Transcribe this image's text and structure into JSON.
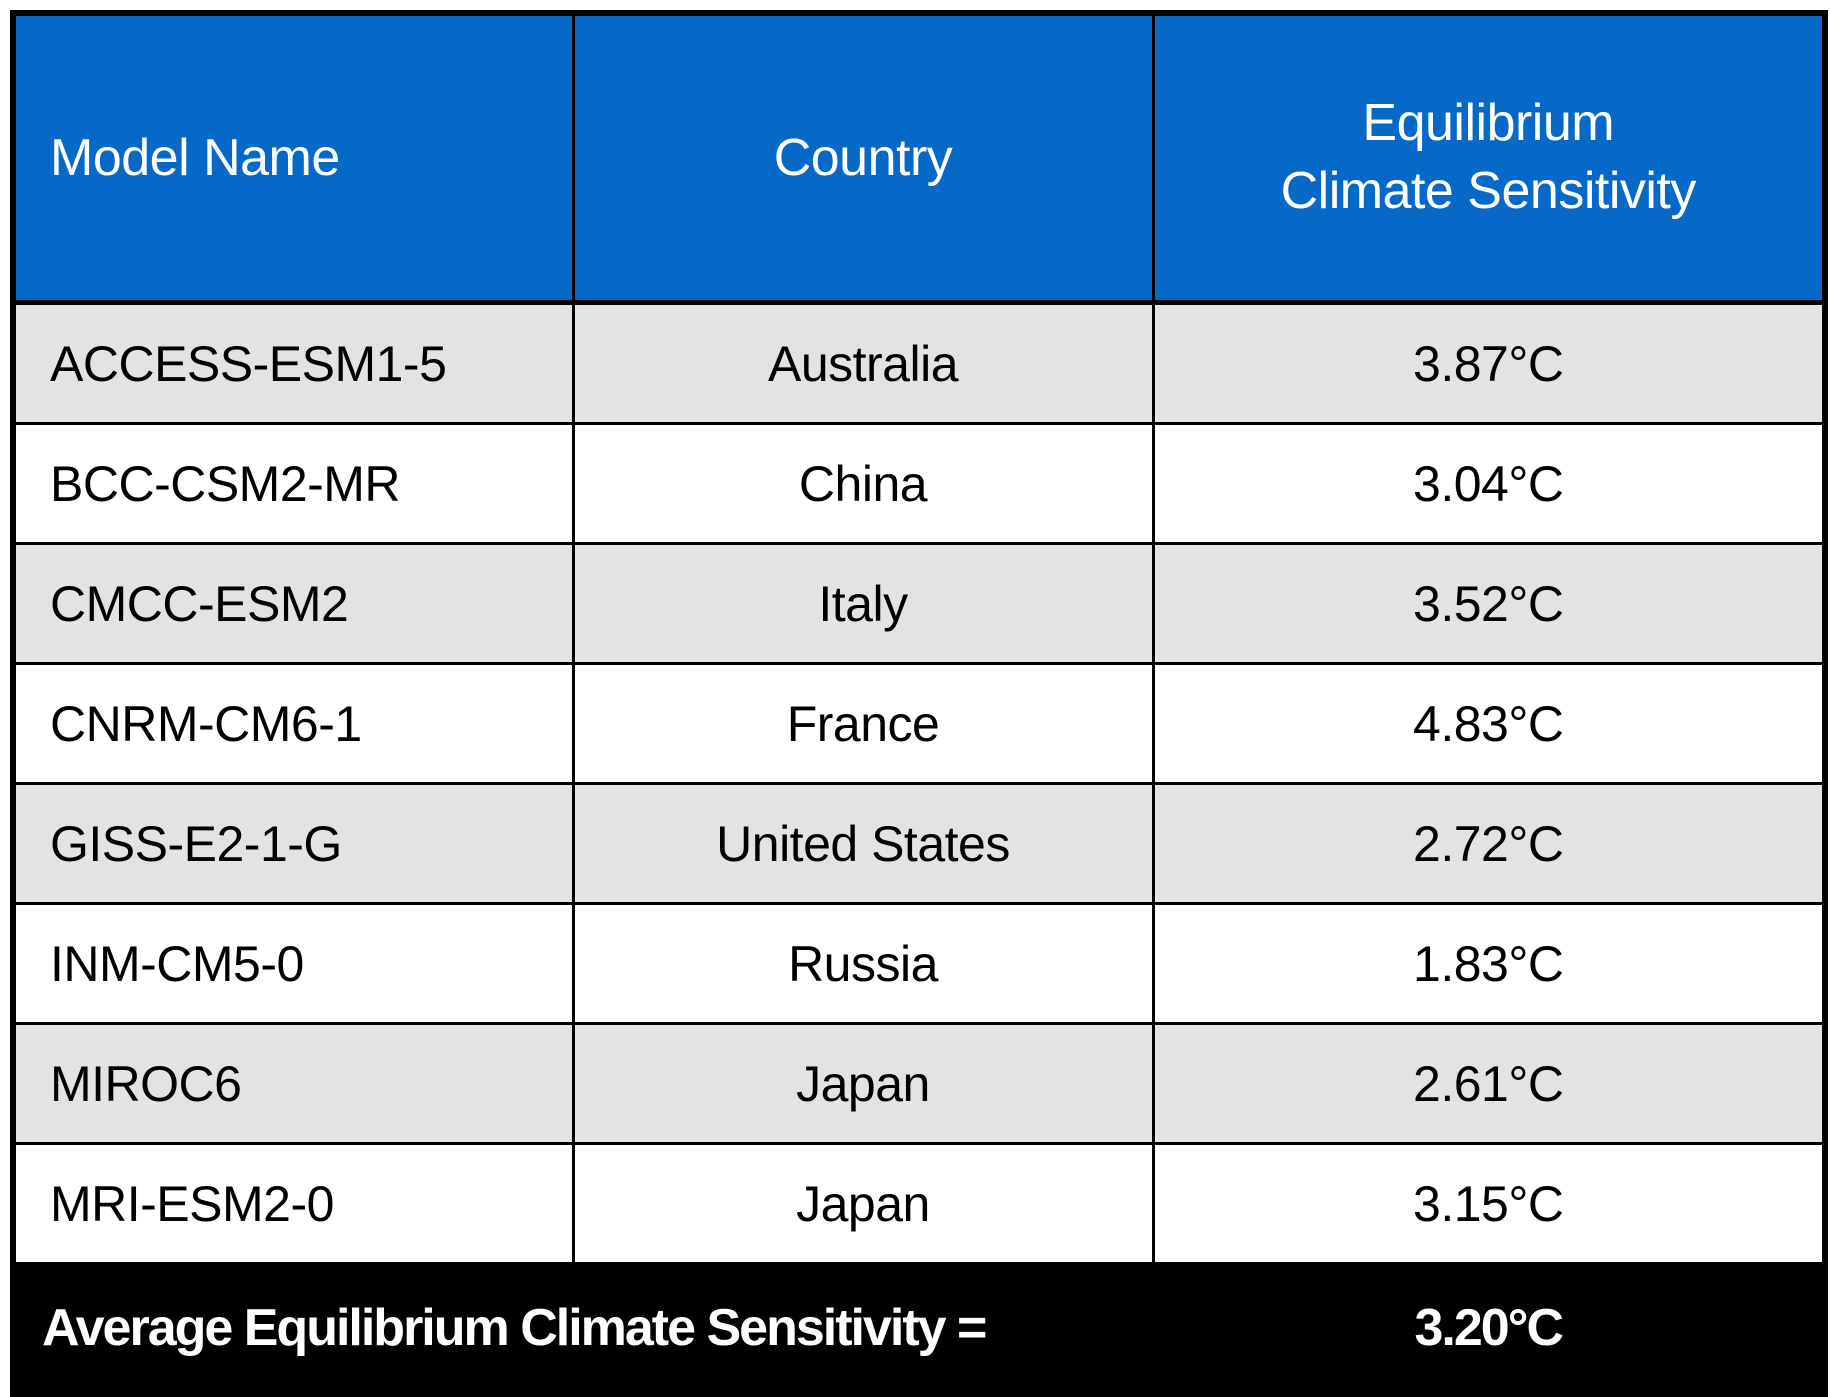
{
  "colors": {
    "header_bg": "#0668c7",
    "header_text": "#ffffff",
    "row_bg": "#ffffff",
    "row_alt_bg": "#e2e3e5",
    "border": "#000000",
    "footer_bg": "#000000",
    "footer_text": "#ffffff"
  },
  "header": {
    "model": "Model Name",
    "country": "Country",
    "ecs": "Equilibrium\nClimate Sensitivity"
  },
  "rows": [
    {
      "model": "ACCESS-ESM1-5",
      "country": "Australia",
      "ecs": "3.87°C"
    },
    {
      "model": "BCC-CSM2-MR",
      "country": "China",
      "ecs": "3.04°C"
    },
    {
      "model": "CMCC-ESM2",
      "country": "Italy",
      "ecs": "3.52°C"
    },
    {
      "model": "CNRM-CM6-1",
      "country": "France",
      "ecs": "4.83°C"
    },
    {
      "model": "GISS-E2-1-G",
      "country": "United States",
      "ecs": "2.72°C"
    },
    {
      "model": "INM-CM5-0",
      "country": "Russia",
      "ecs": "1.83°C"
    },
    {
      "model": "MIROC6",
      "country": "Japan",
      "ecs": "2.61°C"
    },
    {
      "model": "MRI-ESM2-0",
      "country": "Japan",
      "ecs": "3.15°C"
    }
  ],
  "footer": {
    "label": "Average Equilibrium Climate Sensitivity =",
    "value": "3.20°C"
  },
  "chart_data": {
    "type": "table",
    "columns": [
      "Model Name",
      "Country",
      "Equilibrium Climate Sensitivity"
    ],
    "rows": [
      [
        "ACCESS-ESM1-5",
        "Australia",
        "3.87°C"
      ],
      [
        "BCC-CSM2-MR",
        "China",
        "3.04°C"
      ],
      [
        "CMCC-ESM2",
        "Italy",
        "3.52°C"
      ],
      [
        "CNRM-CM6-1",
        "France",
        "4.83°C"
      ],
      [
        "GISS-E2-1-G",
        "United States",
        "2.72°C"
      ],
      [
        "INM-CM5-0",
        "Russia",
        "1.83°C"
      ],
      [
        "MIROC6",
        "Japan",
        "2.61°C"
      ],
      [
        "MRI-ESM2-0",
        "Japan",
        "3.15°C"
      ]
    ],
    "values_c": [
      3.87,
      3.04,
      3.52,
      4.83,
      2.72,
      1.83,
      2.61,
      3.15
    ],
    "summary": {
      "label": "Average Equilibrium Climate Sensitivity",
      "value_c": 3.2
    }
  }
}
